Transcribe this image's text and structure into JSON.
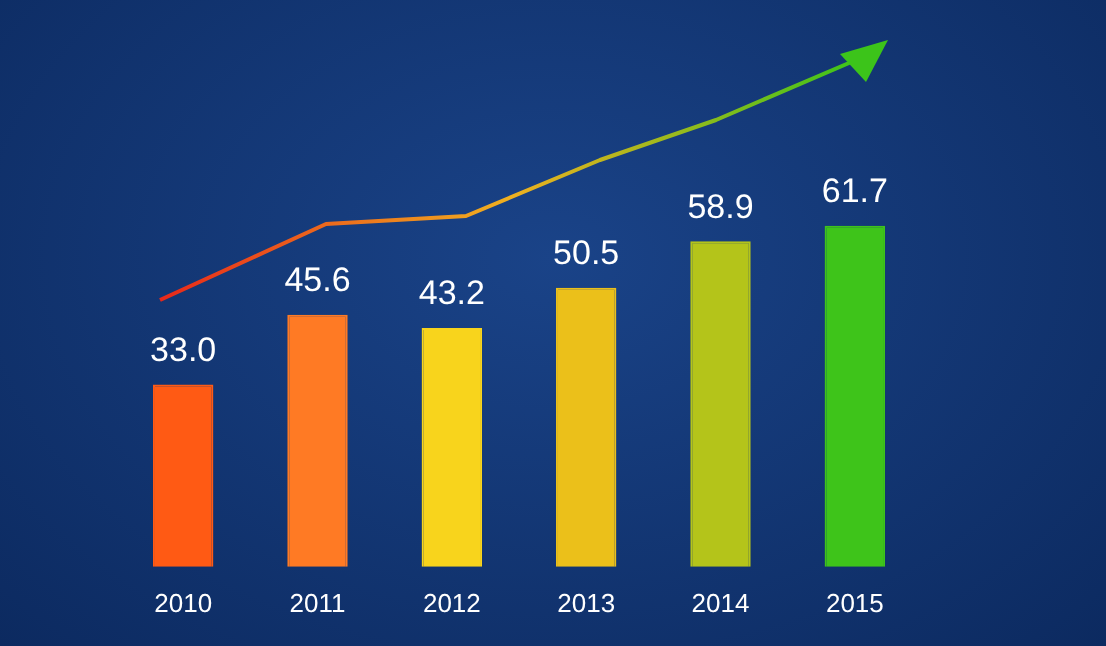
{
  "chart_data": {
    "type": "bar",
    "categories": [
      "2010",
      "2011",
      "2012",
      "2013",
      "2014",
      "2015"
    ],
    "values": [
      33.0,
      45.6,
      43.2,
      50.5,
      58.9,
      61.7
    ],
    "colors": [
      "#ff5a14",
      "#ff7a24",
      "#f8d41c",
      "#ebc01a",
      "#b4c41a",
      "#3ec41a"
    ],
    "value_labels": [
      "33.0",
      "45.6",
      "43.2",
      "50.5",
      "58.9",
      "61.7"
    ],
    "grid": false,
    "legend": false
  }
}
